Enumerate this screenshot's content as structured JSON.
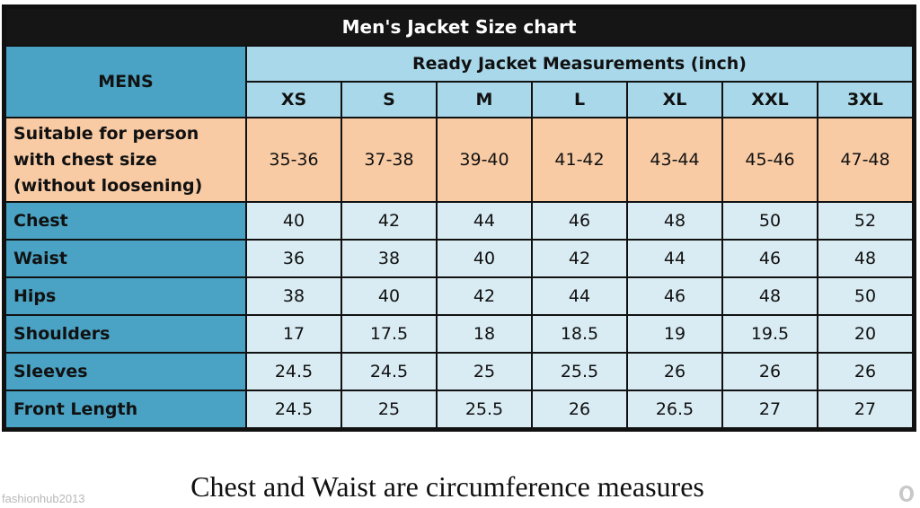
{
  "title": "Men's Jacket Size chart",
  "mens_header": "MENS",
  "measurements_header": "Ready Jacket Measurements (inch)",
  "sizes": [
    "XS",
    "S",
    "M",
    "L",
    "XL",
    "XXL",
    "3XL"
  ],
  "suitable": {
    "label_lines": [
      "Suitable for person",
      "with chest size",
      "(without loosening)"
    ],
    "values": [
      "35-36",
      "37-38",
      "39-40",
      "41-42",
      "43-44",
      "45-46",
      "47-48"
    ]
  },
  "rows": [
    {
      "label": "Chest",
      "values": [
        "40",
        "42",
        "44",
        "46",
        "48",
        "50",
        "52"
      ]
    },
    {
      "label": "Waist",
      "values": [
        "36",
        "38",
        "40",
        "42",
        "44",
        "46",
        "48"
      ]
    },
    {
      "label": "Hips",
      "values": [
        "38",
        "40",
        "42",
        "44",
        "46",
        "48",
        "50"
      ]
    },
    {
      "label": "Shoulders",
      "values": [
        "17",
        "17.5",
        "18",
        "18.5",
        "19",
        "19.5",
        "20"
      ]
    },
    {
      "label": "Sleeves",
      "values": [
        "24.5",
        "24.5",
        "25",
        "25.5",
        "26",
        "26",
        "26"
      ]
    },
    {
      "label": "Front Length",
      "values": [
        "24.5",
        "25",
        "25.5",
        "26",
        "26.5",
        "27",
        "27"
      ]
    }
  ],
  "caption": "Chest and Waist are circumference measures",
  "watermark": "fashionhub2013",
  "colors": {
    "title_bg": "#151515",
    "header_dark_blue": "#4aa3c4",
    "header_light_blue": "#a8d8ea",
    "peach": "#f8cba4",
    "cell_light_blue": "#d9ecf3"
  }
}
